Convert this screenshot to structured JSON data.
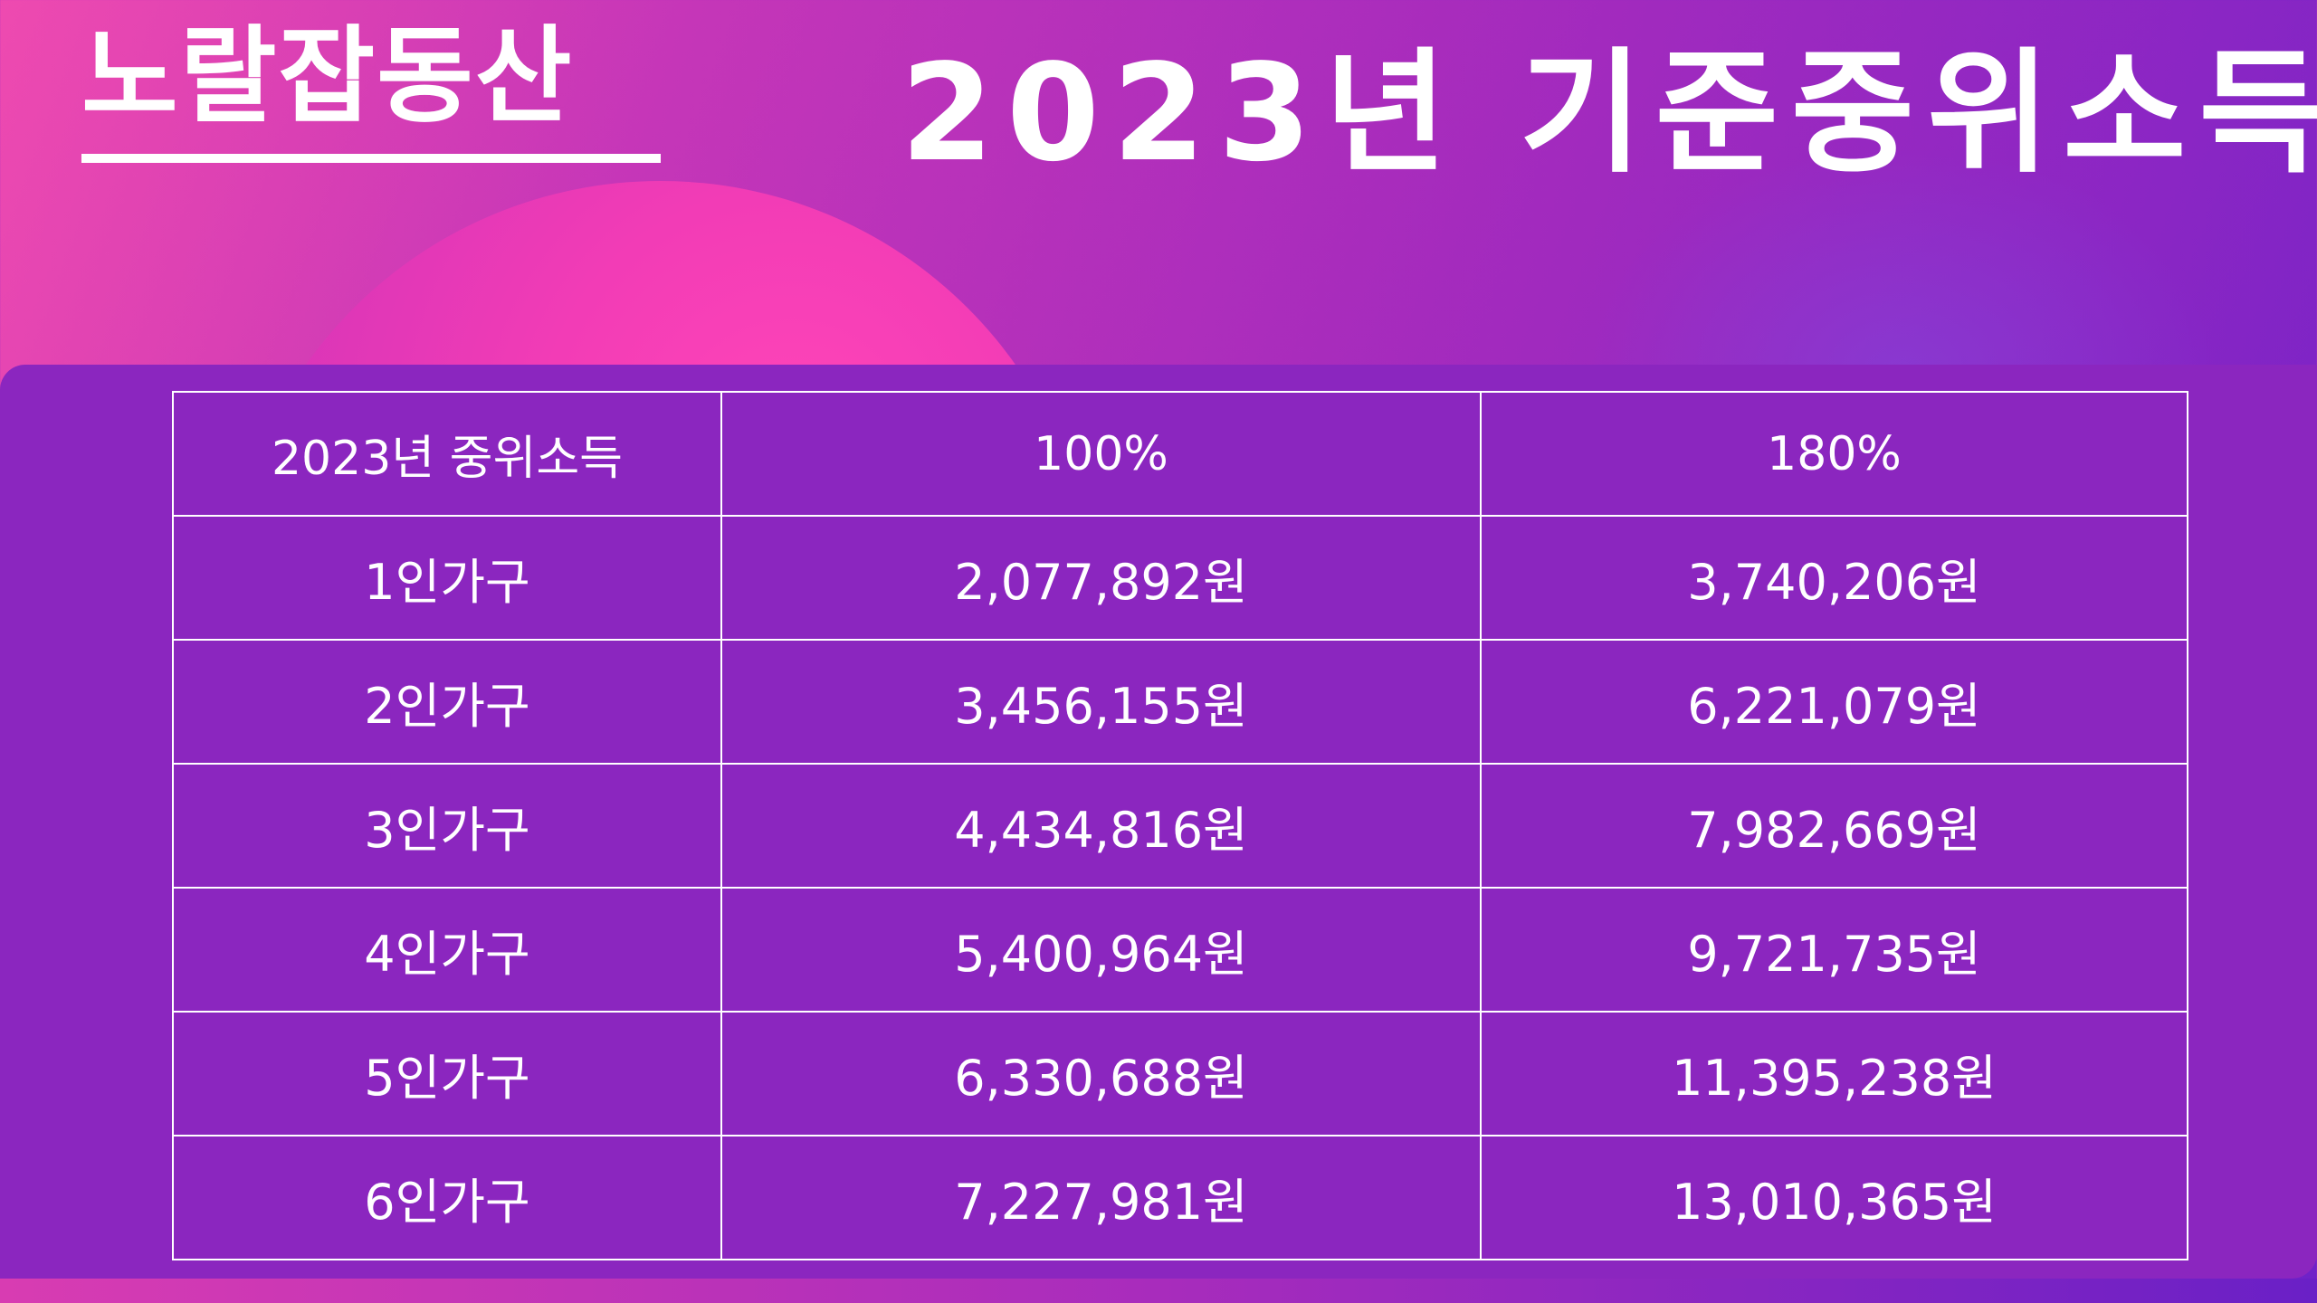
{
  "brand": {
    "text": "노랄잡동산"
  },
  "title": {
    "text": "2023년 기준중위소득"
  },
  "table": {
    "headers": [
      "2023년 중위소득",
      "100%",
      "180%"
    ],
    "rows": [
      [
        "1인가구",
        "2,077,892원",
        "3,740,206원"
      ],
      [
        "2인가구",
        "3,456,155원",
        "6,221,079원"
      ],
      [
        "3인가구",
        "4,434,816원",
        "7,982,669원"
      ],
      [
        "4인가구",
        "5,400,964원",
        "9,721,735원"
      ],
      [
        "5인가구",
        "6,330,688원",
        "11,395,238원"
      ],
      [
        "6인가구",
        "7,227,981원",
        "13,010,365원"
      ]
    ]
  },
  "colors": {
    "background_left": "#ee4ab0",
    "background_right": "#6f22c8",
    "panel": "#8b26bf",
    "text": "#ffffff"
  }
}
